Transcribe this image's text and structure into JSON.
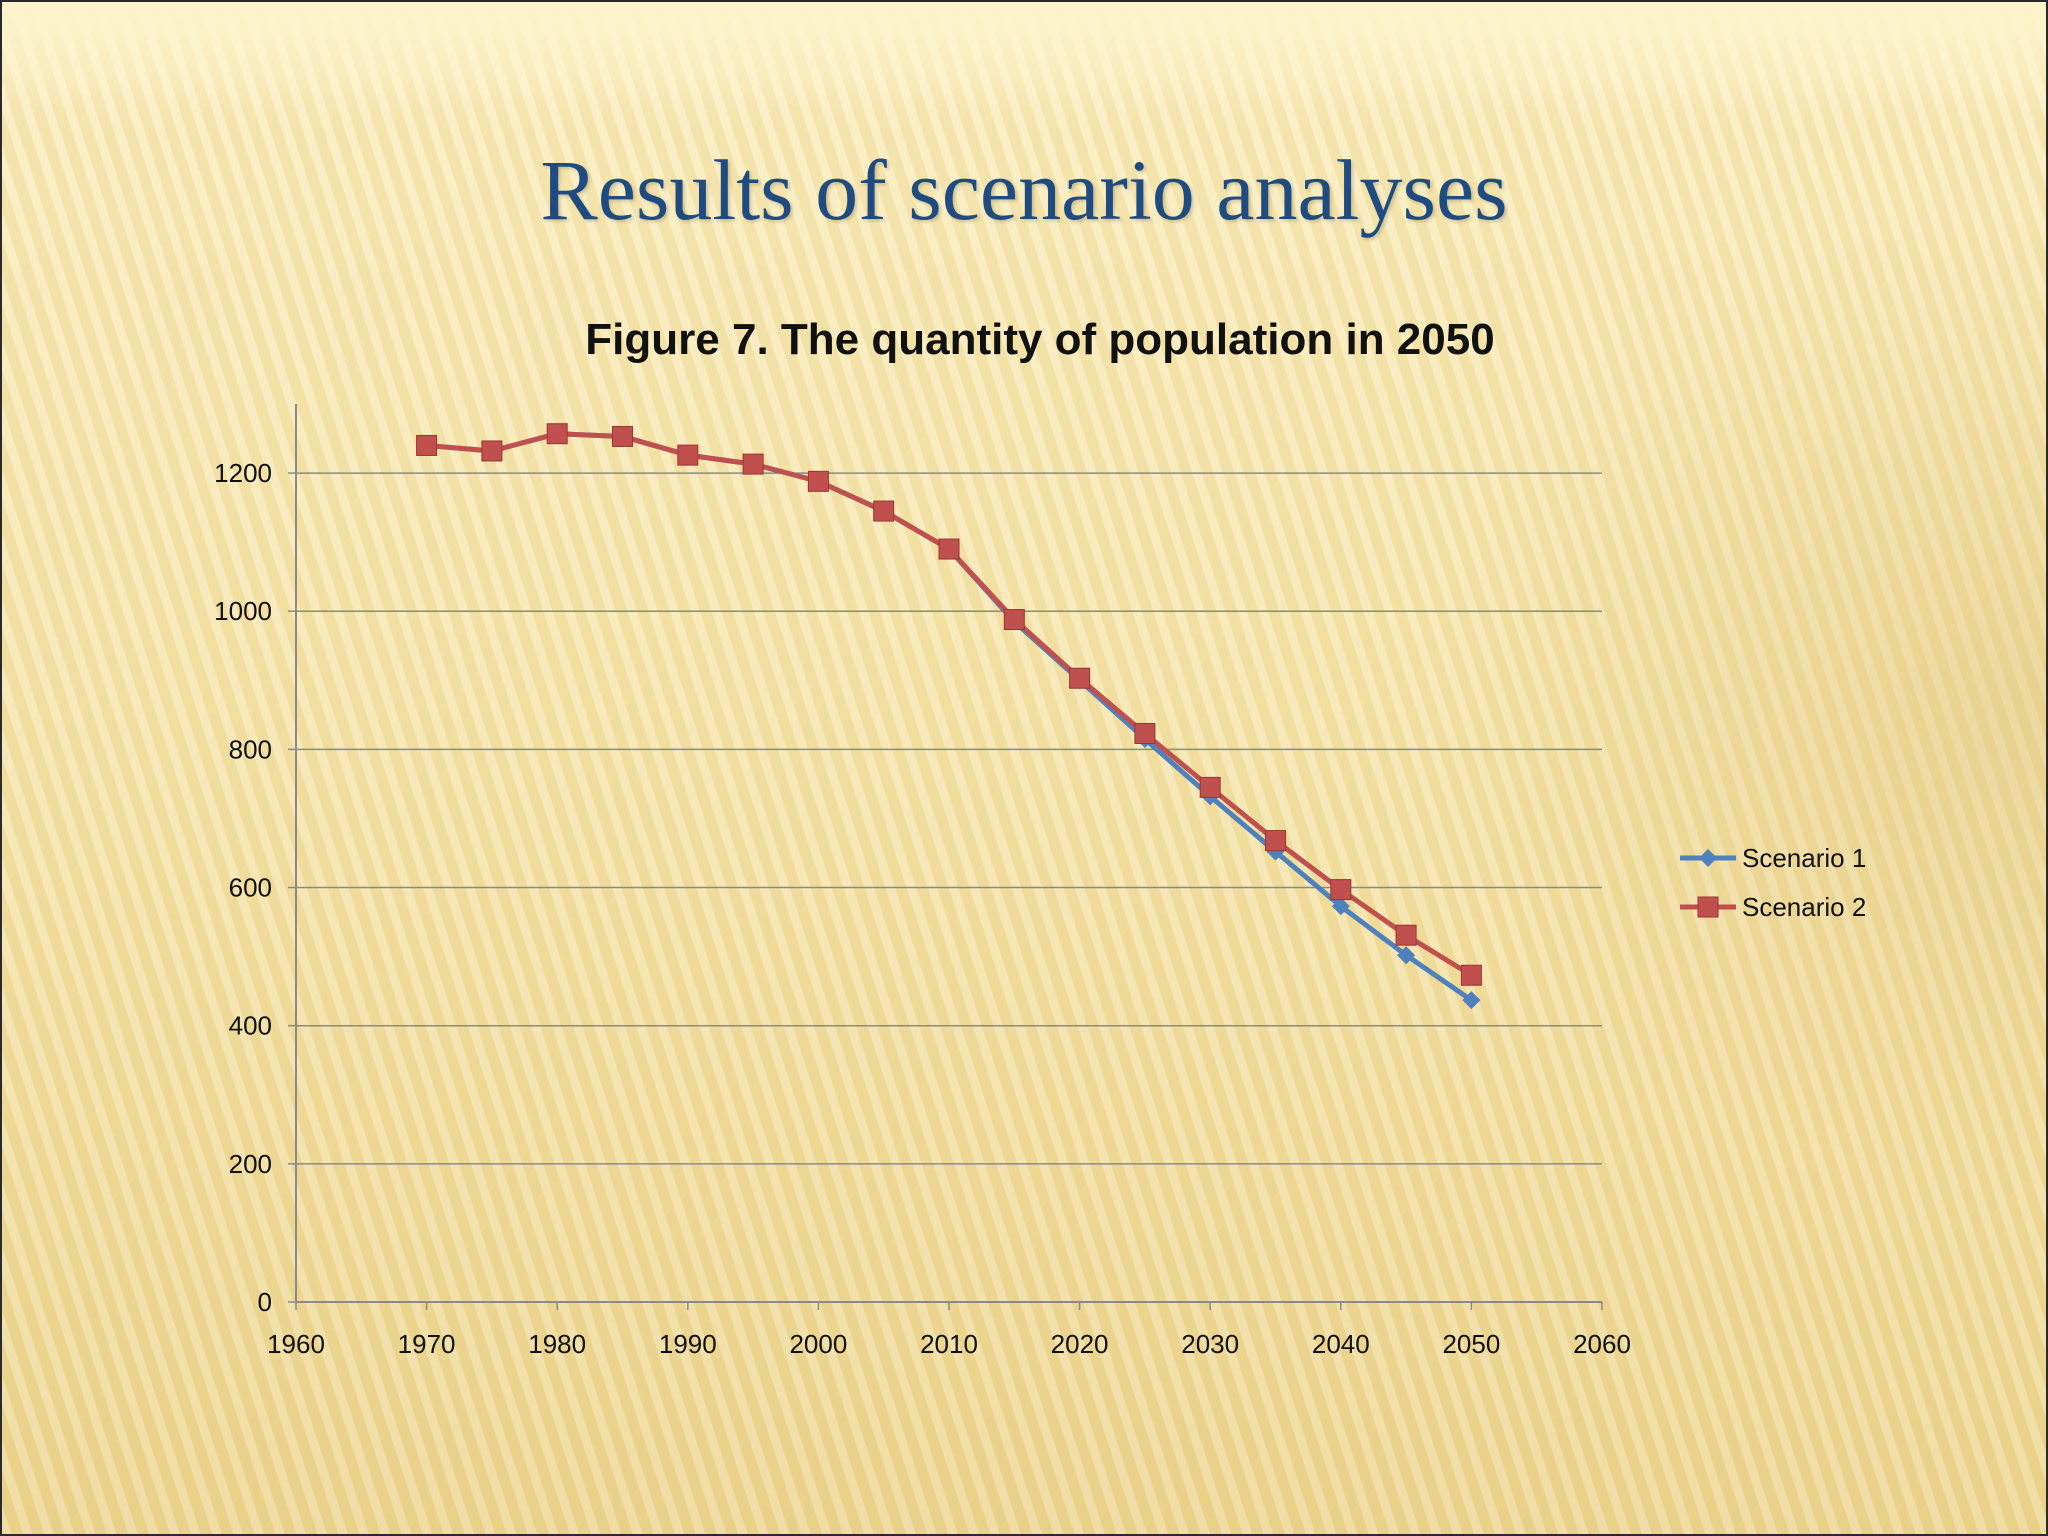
{
  "slide": {
    "title": "Results of scenario analyses"
  },
  "chart_data": {
    "type": "line",
    "title": "Figure 7. The quantity of population in 2050",
    "xlabel": "",
    "ylabel": "",
    "xlim": [
      1960,
      2060
    ],
    "ylim": [
      0,
      1300
    ],
    "x_ticks": [
      1960,
      1970,
      1980,
      1990,
      2000,
      2010,
      2020,
      2030,
      2040,
      2050,
      2060
    ],
    "y_ticks": [
      0,
      200,
      400,
      600,
      800,
      1000,
      1200
    ],
    "grid": "horizontal",
    "legend_position": "right",
    "x": [
      1970,
      1975,
      1980,
      1985,
      1990,
      1995,
      2000,
      2005,
      2010,
      2015,
      2020,
      2025,
      2030,
      2035,
      2040,
      2045,
      2050
    ],
    "series": [
      {
        "name": "Scenario 1",
        "color": "#4f81bd",
        "marker": "diamond",
        "values": [
          1240,
          1232,
          1257,
          1253,
          1226,
          1213,
          1188,
          1145,
          1090,
          985,
          900,
          815,
          732,
          652,
          573,
          502,
          437
        ]
      },
      {
        "name": "Scenario 2",
        "color": "#c0504d",
        "marker": "square",
        "values": [
          1240,
          1232,
          1257,
          1253,
          1226,
          1213,
          1188,
          1145,
          1090,
          988,
          903,
          823,
          745,
          668,
          597,
          531,
          473
        ]
      }
    ]
  }
}
